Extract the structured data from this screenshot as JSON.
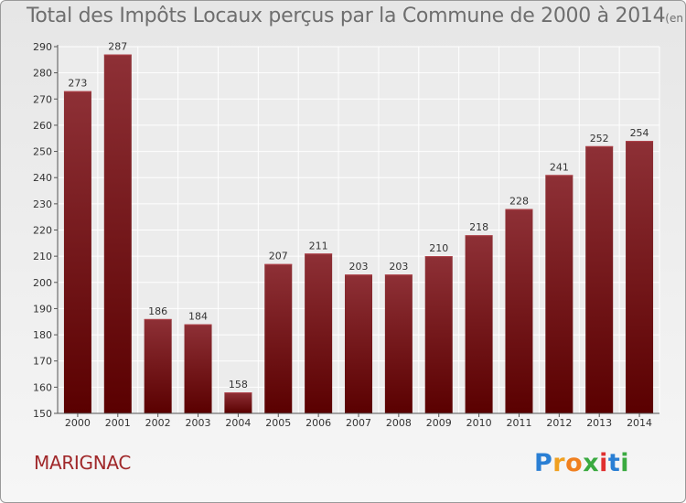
{
  "chart_data": {
    "type": "bar",
    "title": "Total des Impôts Locaux perçus par la Commune de 2000 à 2014",
    "unit_note": "(en milliers d'€)",
    "categories": [
      "2000",
      "2001",
      "2002",
      "2003",
      "2004",
      "2005",
      "2006",
      "2007",
      "2008",
      "2009",
      "2010",
      "2011",
      "2012",
      "2013",
      "2014"
    ],
    "values": [
      273,
      287,
      186,
      184,
      158,
      207,
      211,
      203,
      203,
      210,
      218,
      228,
      241,
      252,
      254
    ],
    "ylim": [
      150,
      290
    ],
    "yticks": [
      150,
      160,
      170,
      180,
      190,
      200,
      210,
      220,
      230,
      240,
      250,
      260,
      270,
      280,
      290
    ],
    "xlabel": "",
    "ylabel": "",
    "grid": true,
    "bar_color_top": "#8e3036",
    "bar_color_bottom": "#5a0000"
  },
  "commune": "MARIGNAC",
  "logo": {
    "letters": [
      "P",
      "r",
      "o",
      "x",
      "i",
      "t",
      "i"
    ],
    "colors": [
      "#2a7fd4",
      "#f0a020",
      "#f08020",
      "#3aaa40",
      "#e03030",
      "#2a7fd4",
      "#3aaa40"
    ]
  }
}
